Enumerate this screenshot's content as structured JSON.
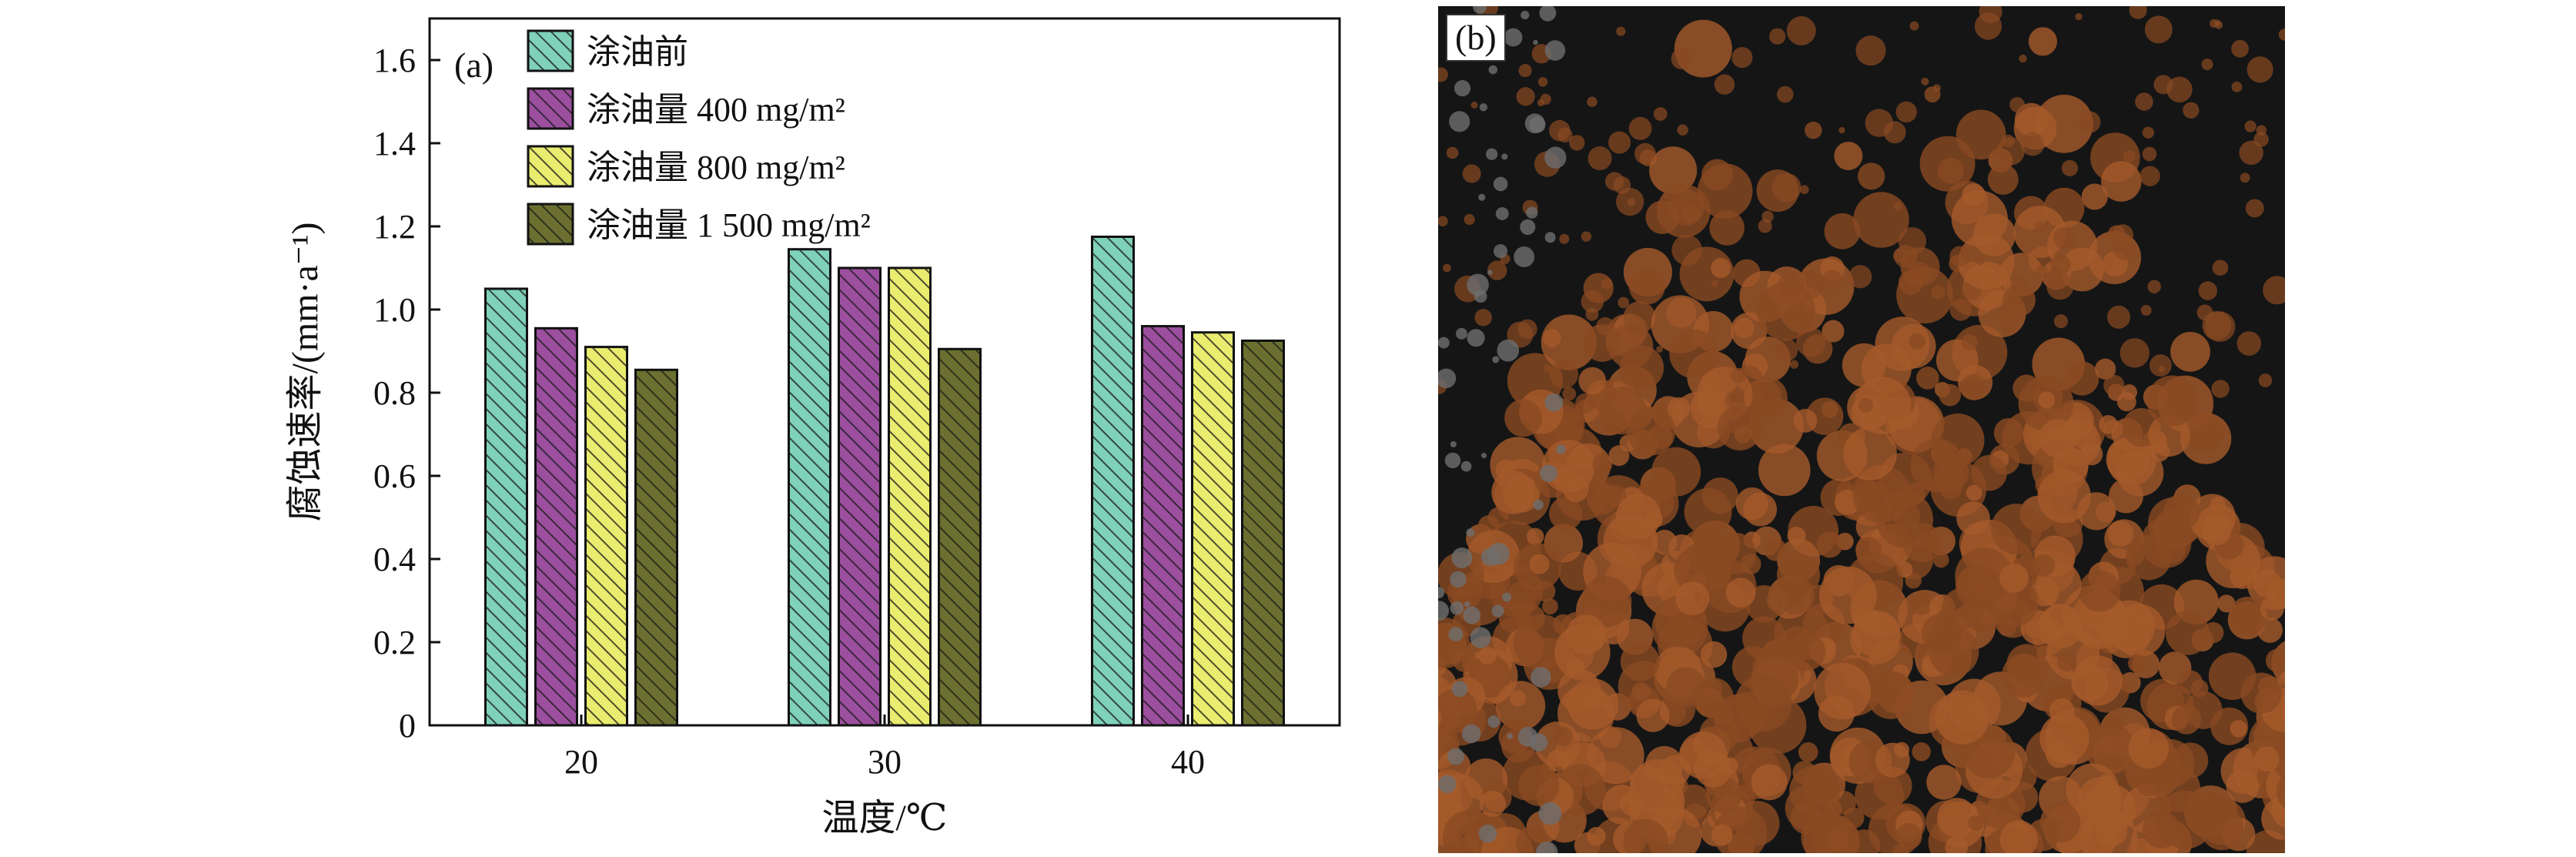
{
  "chart_data": {
    "type": "bar",
    "panel_label": "(a)",
    "categories": [
      "20",
      "30",
      "40"
    ],
    "xlabel": "温度/℃",
    "ylabel": "腐蚀速率/(mm·a⁻¹)",
    "ylim": [
      0,
      1.7
    ],
    "yticks": [
      "0",
      "0.2",
      "0.4",
      "0.6",
      "0.8",
      "1.0",
      "1.2",
      "1.4",
      "1.6"
    ],
    "legend_position": "top-left",
    "grid": false,
    "series": [
      {
        "name": "涂油前",
        "values": [
          1.05,
          1.145,
          1.175
        ],
        "color": "#7fd1b9"
      },
      {
        "name": "涂油量 400 mg/m²",
        "values": [
          0.955,
          1.1,
          0.96
        ],
        "color": "#9b4f9e"
      },
      {
        "name": "涂油量 800 mg/m²",
        "values": [
          0.91,
          1.1,
          0.945
        ],
        "color": "#e9ec6f"
      },
      {
        "name": "涂油量 1 500 mg/m²",
        "values": [
          0.855,
          0.905,
          0.925
        ],
        "color": "#6b7030"
      }
    ]
  },
  "photo": {
    "panel_label": "(b)",
    "colors": {
      "dark": "#151515",
      "rust": "#8a4a22",
      "light_rust": "#a55a2a",
      "grey": "#6e6e6e"
    }
  }
}
